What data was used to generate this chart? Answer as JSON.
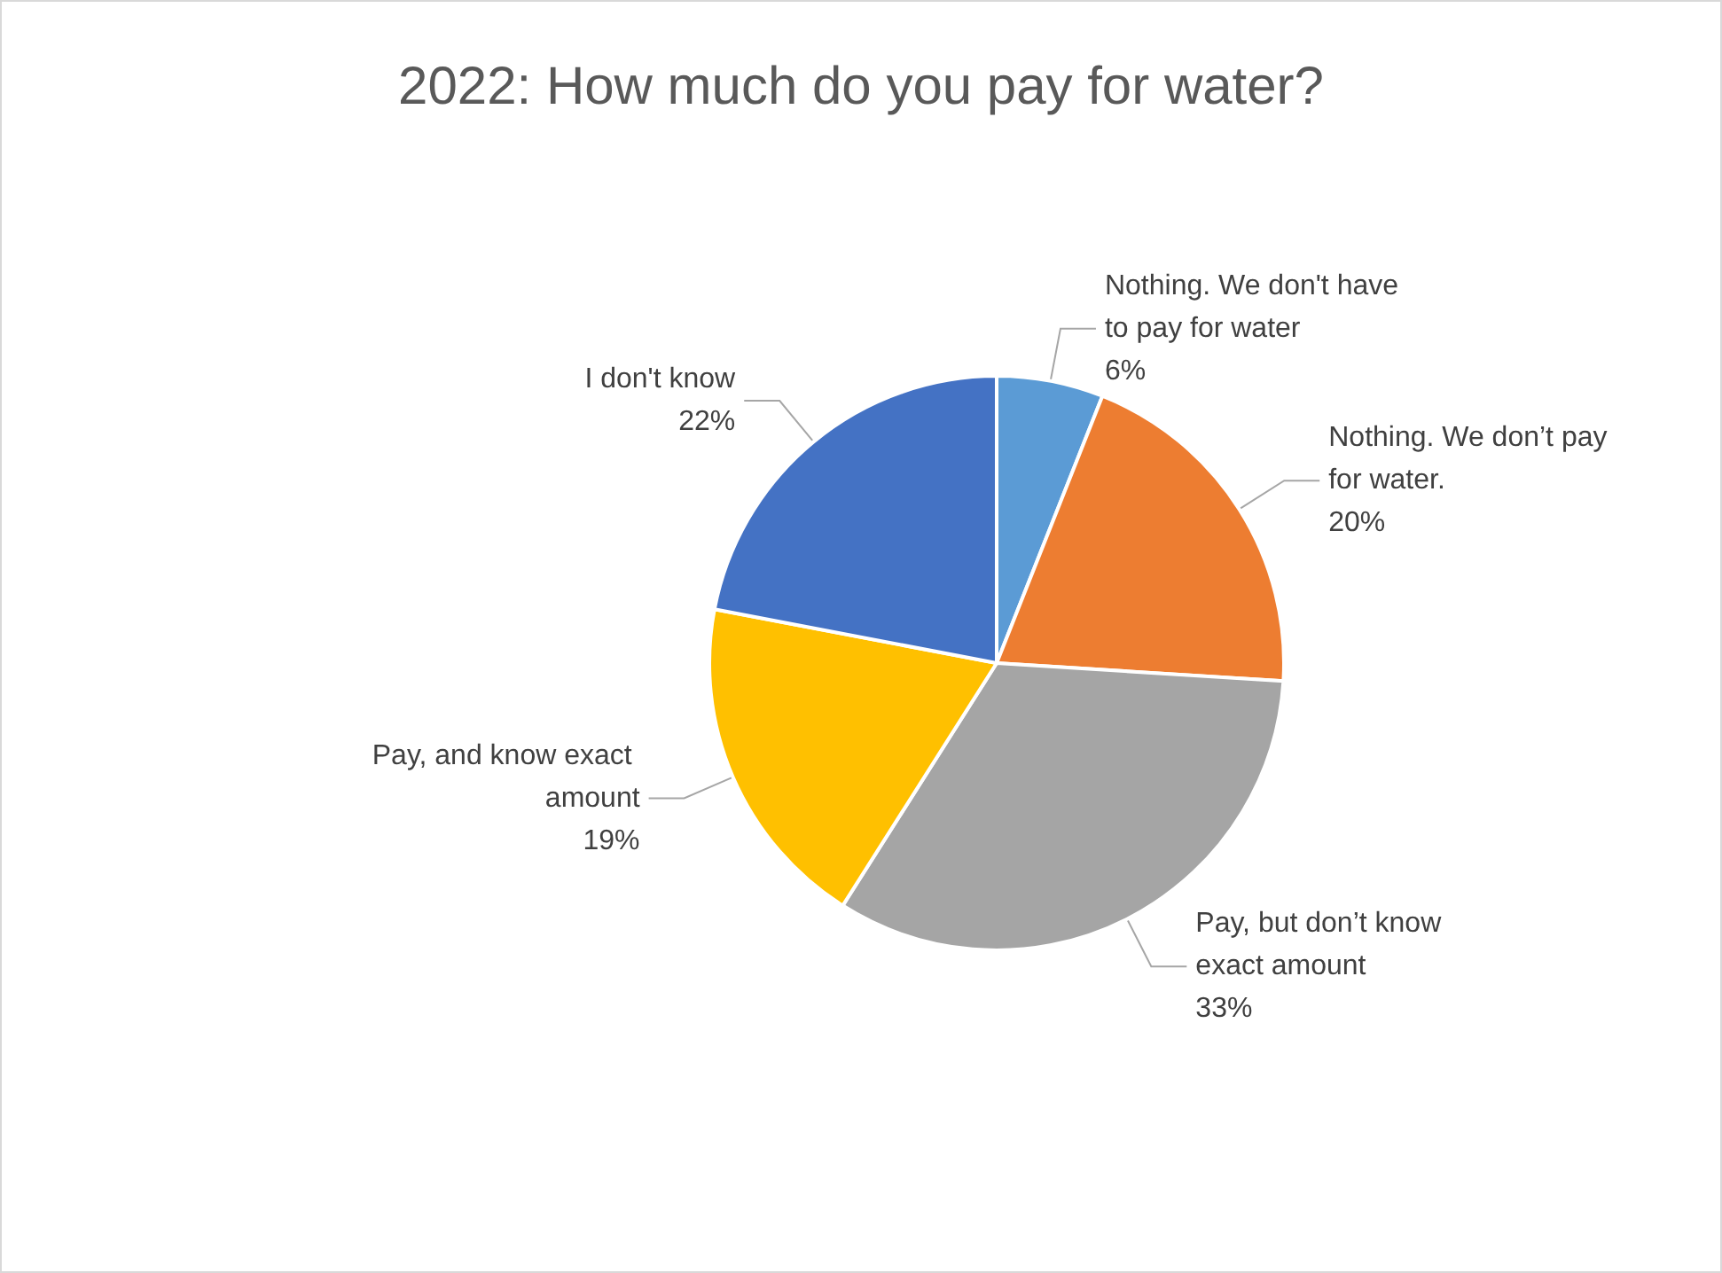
{
  "chart_data": {
    "type": "pie",
    "title": "2022: How much do you pay for water?",
    "categories": [
      "Nothing. We don't have to pay for water",
      "Nothing. We don’t pay for water.",
      "Pay, but don’t know exact amount",
      "Pay, and know exact amount",
      "I don't know"
    ],
    "values": [
      6,
      20,
      33,
      19,
      22
    ],
    "value_labels": [
      "6%",
      "20%",
      "33%",
      "19%",
      "22%"
    ],
    "colors": [
      "#5b9bd5",
      "#ed7d31",
      "#a5a5a5",
      "#ffc000",
      "#4472c4"
    ],
    "legend": false
  }
}
